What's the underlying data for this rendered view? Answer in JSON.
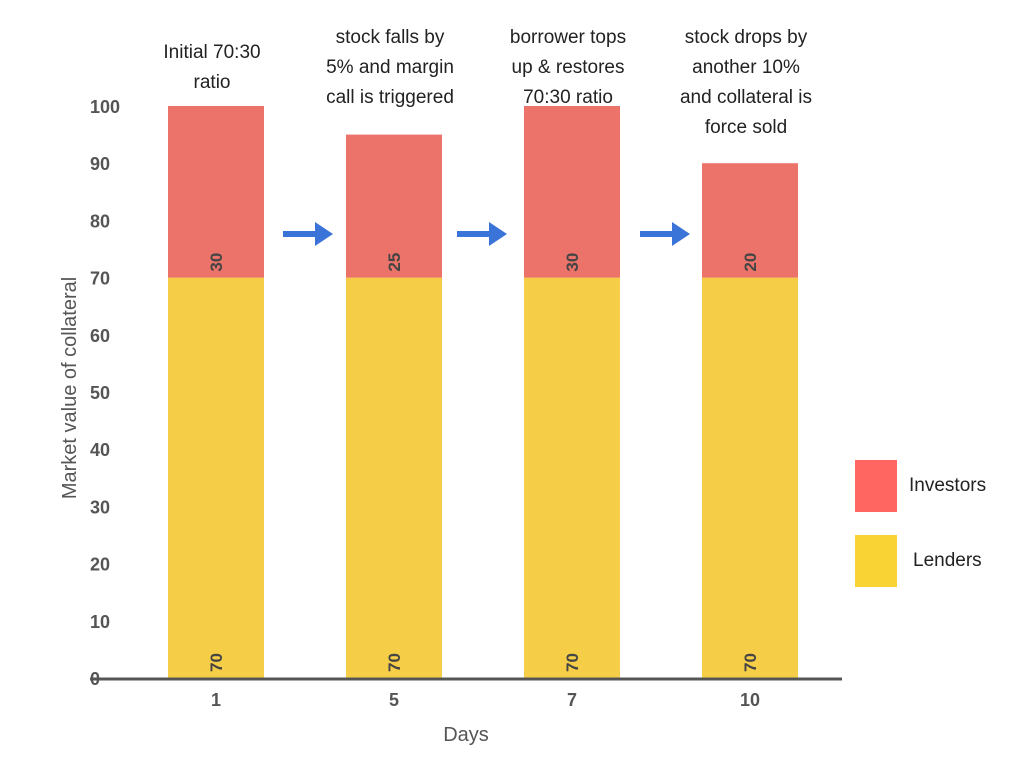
{
  "chart_data": {
    "type": "bar",
    "stacked": true,
    "xlabel": "Days",
    "ylabel": "Market value of collateral",
    "ylim": [
      0,
      100
    ],
    "yticks": [
      0,
      10,
      20,
      30,
      40,
      50,
      60,
      70,
      80,
      90,
      100
    ],
    "categories": [
      "1",
      "5",
      "7",
      "10"
    ],
    "series": [
      {
        "name": "Lenders",
        "color": "#F6CD47",
        "values": [
          70,
          70,
          70,
          70
        ],
        "labels": [
          "70",
          "70",
          "70",
          "70"
        ]
      },
      {
        "name": "Investors",
        "color": "#EC7369",
        "values": [
          30,
          25,
          30,
          20
        ],
        "labels": [
          "30",
          "25",
          "30",
          "20"
        ]
      }
    ],
    "annotations": [
      {
        "lines": [
          "Initial 70:30",
          "ratio"
        ]
      },
      {
        "lines": [
          "stock falls by",
          "5% and margin",
          "call is triggered"
        ]
      },
      {
        "lines": [
          "borrower tops",
          "up & restores",
          "70:30 ratio"
        ]
      },
      {
        "lines": [
          "stock drops by",
          "another 10%",
          "and collateral is",
          "force sold"
        ]
      }
    ],
    "arrow_color": "#3B74D8",
    "grid": false,
    "legend": {
      "position": "right",
      "items": [
        {
          "label": "Investors",
          "color": "#FF6661"
        },
        {
          "label": "Lenders",
          "color": "#F8D333"
        }
      ]
    }
  }
}
